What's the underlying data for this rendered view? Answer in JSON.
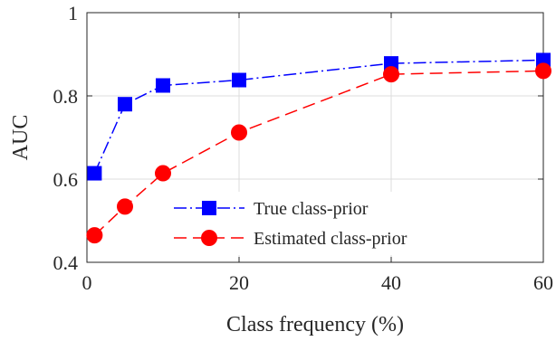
{
  "chart_data": {
    "type": "line",
    "xlabel": "Class frequency (%)",
    "ylabel": "AUC",
    "xlim": [
      0,
      60
    ],
    "ylim": [
      0.4,
      1
    ],
    "xticks": [
      "0",
      "20",
      "40",
      "60"
    ],
    "yticks": [
      "0.4",
      "0.6",
      "0.8",
      "1"
    ],
    "grid": true,
    "legend_position": "bottom-right",
    "x": [
      1,
      5,
      10,
      20,
      40,
      60
    ],
    "series": [
      {
        "name": "True class-prior",
        "values": [
          0.614,
          0.78,
          0.825,
          0.838,
          0.878,
          0.886
        ],
        "color": "#0000ff",
        "marker": "square",
        "line": "dash-dot"
      },
      {
        "name": "Estimated class-prior",
        "values": [
          0.465,
          0.534,
          0.614,
          0.712,
          0.852,
          0.86
        ],
        "color": "#ff0000",
        "marker": "circle",
        "line": "dashed"
      }
    ]
  }
}
